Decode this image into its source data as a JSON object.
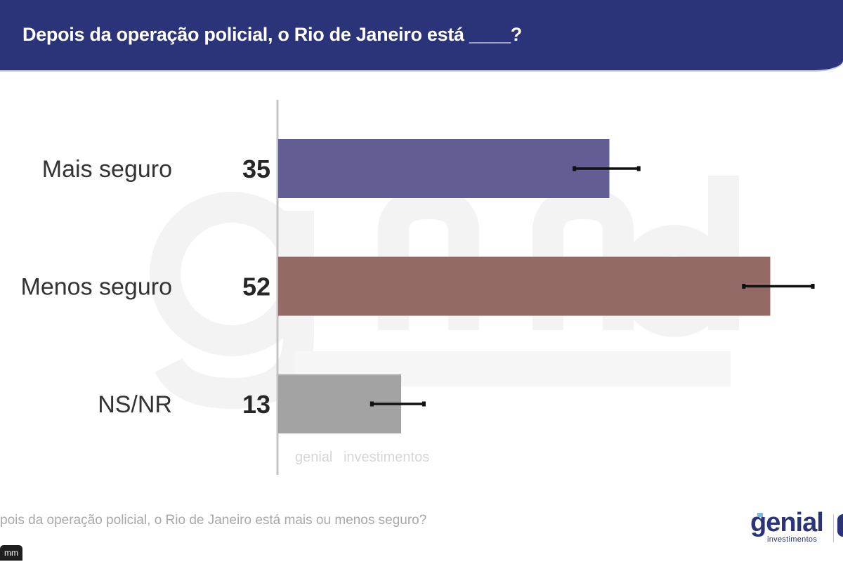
{
  "header": {
    "title": "Depois da operação policial, o Rio de Janeiro está ____?"
  },
  "watermark": {
    "main": "genial",
    "sub": "investimentos"
  },
  "footnote": "pois da operação policial, o Rio de Janeiro está mais ou menos seguro?",
  "logo": {
    "word": "genial",
    "sub": "investimentos"
  },
  "corner_tab": {
    "label": "mm"
  },
  "colors": {
    "header_bg": "#2b3478",
    "mais_seguro": "#625e94",
    "menos_seguro": "#936a66",
    "ns_nr": "#a3a3a3",
    "error_bar": "#111111",
    "axis": "#c4c4c4"
  },
  "chart_data": {
    "type": "bar",
    "orientation": "horizontal",
    "title": "Depois da operação policial, o Rio de Janeiro está ____?",
    "xlabel": "",
    "ylabel": "",
    "xlim": [
      0,
      58
    ],
    "grid": false,
    "categories": [
      "Mais seguro",
      "Menos seguro",
      "NS/NR"
    ],
    "values": [
      35,
      52,
      13
    ],
    "bar_colors": [
      "#625e94",
      "#936a66",
      "#a3a3a3"
    ],
    "error_bars": [
      {
        "low": 31.3,
        "high": 38.1
      },
      {
        "low": 49.2,
        "high": 56.5
      },
      {
        "low": 9.9,
        "high": 15.4
      }
    ],
    "value_labels": [
      "35",
      "52",
      "13"
    ]
  }
}
